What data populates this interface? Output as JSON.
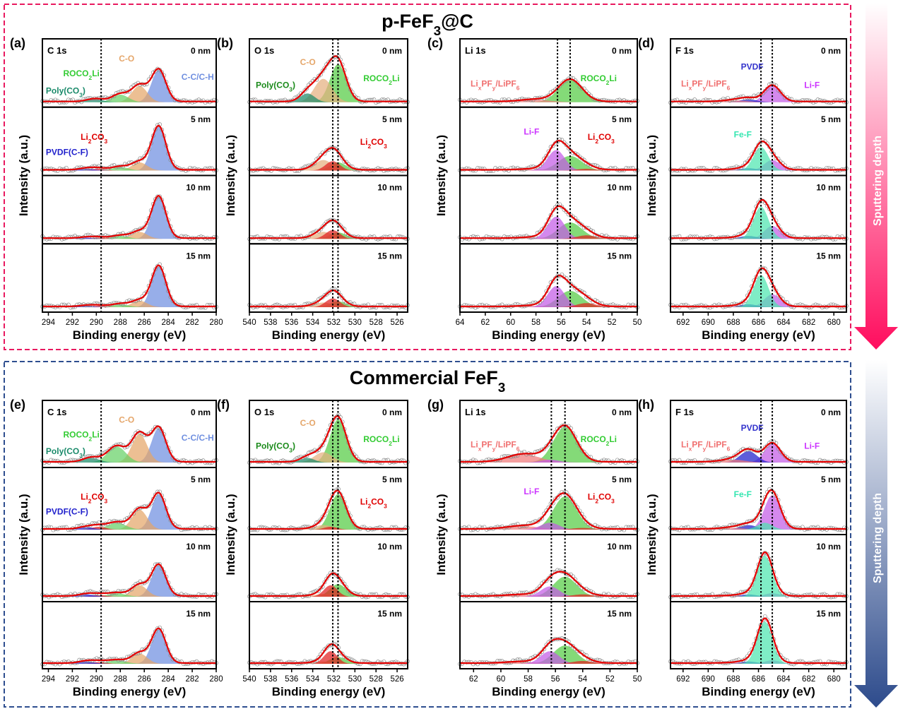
{
  "figure": {
    "group_titles": [
      "p-FeF3@C",
      "Commercial FeF3"
    ],
    "arrow_label": "Sputtering depth",
    "y_label": "Intensity (a.u.)",
    "x_label": "Binding energy (eV)",
    "colors": {
      "fit_line": "#e60000",
      "group_top_border": "#e8195f",
      "group_bottom_border": "#2e4e8f",
      "arrow_top": "#ff0d5e",
      "arrow_bottom": "#2d4b8c"
    }
  },
  "chart_data": [
    {
      "type": "line",
      "panel": "(a)",
      "title": "C 1s",
      "group": "p-FeF3@C",
      "xlim": [
        294.5,
        280
      ],
      "xticks": [
        294,
        292,
        290,
        288,
        286,
        284,
        282,
        280
      ],
      "dashed_lines_at": [
        289.6
      ],
      "depths": [
        "0 nm",
        "5 nm",
        "10 nm",
        "15 nm"
      ],
      "components": [
        {
          "name": "C-C/C-H",
          "center": 284.8,
          "fwhm": 1.4,
          "color": "#6f8fe0",
          "amplitude": [
            0.55,
            0.75,
            0.72,
            0.7
          ]
        },
        {
          "name": "C-O",
          "center": 286.4,
          "fwhm": 1.5,
          "color": "#e5a66a",
          "amplitude": [
            0.28,
            0.14,
            0.12,
            0.11
          ]
        },
        {
          "name": "ROCO2Li",
          "center": 288.0,
          "fwhm": 1.6,
          "color": "#66d166",
          "amplitude": [
            0.13,
            0.06,
            0.05,
            0.05
          ]
        },
        {
          "name": "Poly(CO3)",
          "center": 290.1,
          "fwhm": 1.6,
          "color": "#1a8a6a",
          "amplitude": [
            0.05,
            0.0,
            0.0,
            0.0
          ]
        },
        {
          "name": "Li2CO3",
          "center": 289.8,
          "fwhm": 1.4,
          "color": "#e02020",
          "amplitude": [
            0.0,
            0.03,
            0.02,
            0.02
          ]
        },
        {
          "name": "PVDF(C-F)",
          "center": 290.8,
          "fwhm": 1.5,
          "color": "#1f1fcc",
          "amplitude": [
            0.0,
            0.03,
            0.02,
            0.02
          ]
        }
      ],
      "annotations": [
        {
          "row": 0,
          "text": "C-O",
          "color": "#e5a66a"
        },
        {
          "row": 0,
          "text": "ROCO2Li",
          "color": "#33cc33"
        },
        {
          "row": 0,
          "text": "C-C/C-H",
          "color": "#6f8fe0"
        },
        {
          "row": 0,
          "text": "Poly(CO3)",
          "color": "#1a8a6a"
        },
        {
          "row": 1,
          "text": "Li2CO3",
          "color": "#e00000"
        },
        {
          "row": 1,
          "text": "PVDF(C-F)",
          "color": "#1f1fcc"
        }
      ]
    },
    {
      "type": "line",
      "panel": "(b)",
      "title": "O 1s",
      "group": "p-FeF3@C",
      "xlim": [
        540,
        525
      ],
      "xticks": [
        540,
        538,
        536,
        534,
        532,
        530,
        528,
        526
      ],
      "dashed_lines_at": [
        532.1,
        531.6
      ],
      "depths": [
        "0 nm",
        "5 nm",
        "10 nm",
        "15 nm"
      ],
      "components": [
        {
          "name": "ROCO2Li",
          "center": 531.6,
          "fwhm": 1.8,
          "color": "#55cc44",
          "amplitude": [
            0.65,
            0.14,
            0.11,
            0.1
          ]
        },
        {
          "name": "C-O",
          "center": 533.0,
          "fwhm": 2.0,
          "color": "#e5b080",
          "amplitude": [
            0.4,
            0.18,
            0.12,
            0.08
          ]
        },
        {
          "name": "Poly(CO3)",
          "center": 534.5,
          "fwhm": 1.6,
          "color": "#1a8a6a",
          "amplitude": [
            0.15,
            0.0,
            0.0,
            0.0
          ]
        },
        {
          "name": "Li2CO3",
          "center": 532.1,
          "fwhm": 1.6,
          "color": "#e02020",
          "amplitude": [
            0.0,
            0.16,
            0.15,
            0.15
          ]
        }
      ],
      "annotations": [
        {
          "row": 0,
          "text": "C-O",
          "color": "#e5a66a"
        },
        {
          "row": 0,
          "text": "ROCO2Li",
          "color": "#33cc33"
        },
        {
          "row": 0,
          "text": "Poly(CO3)",
          "color": "#1a8a1a"
        },
        {
          "row": 1,
          "text": "Li2CO3",
          "color": "#e00000"
        }
      ]
    },
    {
      "type": "line",
      "panel": "(c)",
      "title": "Li 1s",
      "group": "p-FeF3@C",
      "xlim": [
        64,
        50
      ],
      "xticks": [
        64,
        62,
        60,
        58,
        56,
        54,
        52,
        50
      ],
      "dashed_lines_at": [
        56.3,
        55.3
      ],
      "depths": [
        "0 nm",
        "5 nm",
        "10 nm",
        "15 nm"
      ],
      "components": [
        {
          "name": "ROCO2Li",
          "center": 55.3,
          "fwhm": 2.2,
          "color": "#55cc44",
          "amplitude": [
            0.38,
            0.25,
            0.28,
            0.28
          ]
        },
        {
          "name": "LixPFy/LiPF6",
          "center": 58.0,
          "fwhm": 2.8,
          "color": "#f07a7a",
          "amplitude": [
            0.04,
            0.02,
            0.02,
            0.02
          ]
        },
        {
          "name": "Li-F",
          "center": 56.4,
          "fwhm": 1.6,
          "color": "#c45be6",
          "amplitude": [
            0.0,
            0.35,
            0.38,
            0.36
          ]
        },
        {
          "name": "Li2CO3",
          "center": 54.0,
          "fwhm": 1.8,
          "color": "#e02020",
          "amplitude": [
            0.0,
            0.03,
            0.06,
            0.07
          ]
        }
      ],
      "annotations": [
        {
          "row": 0,
          "text": "LixPFy/LiPF6",
          "color": "#f07070"
        },
        {
          "row": 0,
          "text": "ROCO2Li",
          "color": "#33cc33"
        },
        {
          "row": 1,
          "text": "Li-F",
          "color": "#cc33ff"
        },
        {
          "row": 1,
          "text": "Li2CO3",
          "color": "#e00000"
        }
      ]
    },
    {
      "type": "line",
      "panel": "(d)",
      "title": "F 1s",
      "group": "p-FeF3@C",
      "xlim": [
        693,
        679
      ],
      "xticks": [
        692,
        690,
        688,
        686,
        684,
        682,
        680
      ],
      "dashed_lines_at": [
        685.8,
        684.9
      ],
      "depths": [
        "0 nm",
        "5 nm",
        "10 nm",
        "15 nm"
      ],
      "components": [
        {
          "name": "Li-F",
          "center": 684.9,
          "fwhm": 1.5,
          "color": "#c45be6",
          "amplitude": [
            0.28,
            0.18,
            0.22,
            0.22
          ]
        },
        {
          "name": "PVDF",
          "center": 686.8,
          "fwhm": 1.6,
          "color": "#1f1fcc",
          "amplitude": [
            0.05,
            0.04,
            0.05,
            0.05
          ]
        },
        {
          "name": "LixPFy/LiPF6",
          "center": 687.8,
          "fwhm": 2.2,
          "color": "#f07a7a",
          "amplitude": [
            0.03,
            0.01,
            0.01,
            0.01
          ]
        },
        {
          "name": "Fe-F",
          "center": 685.8,
          "fwhm": 1.4,
          "color": "#4ee6b0",
          "amplitude": [
            0.0,
            0.4,
            0.55,
            0.55
          ]
        }
      ],
      "annotations": [
        {
          "row": 0,
          "text": "PVDF",
          "color": "#3333cc"
        },
        {
          "row": 0,
          "text": "LixPFy/LiPF6",
          "color": "#f07070"
        },
        {
          "row": 0,
          "text": "Li-F",
          "color": "#cc33ff"
        },
        {
          "row": 1,
          "text": "Fe-F",
          "color": "#33e6b0"
        }
      ]
    },
    {
      "type": "line",
      "panel": "(e)",
      "title": "C 1s",
      "group": "Commercial FeF3",
      "xlim": [
        294.5,
        280
      ],
      "xticks": [
        294,
        292,
        290,
        288,
        286,
        284,
        282,
        280
      ],
      "dashed_lines_at": [
        289.6
      ],
      "depths": [
        "0 nm",
        "5 nm",
        "10 nm",
        "15 nm"
      ],
      "components": [
        {
          "name": "C-C/C-H",
          "center": 284.8,
          "fwhm": 1.4,
          "color": "#6f8fe0",
          "amplitude": [
            0.6,
            0.62,
            0.55,
            0.6
          ]
        },
        {
          "name": "C-O",
          "center": 286.4,
          "fwhm": 1.5,
          "color": "#e5a66a",
          "amplitude": [
            0.5,
            0.35,
            0.2,
            0.18
          ]
        },
        {
          "name": "ROCO2Li",
          "center": 288.3,
          "fwhm": 1.8,
          "color": "#66d166",
          "amplitude": [
            0.28,
            0.12,
            0.06,
            0.06
          ]
        },
        {
          "name": "Poly(CO3)",
          "center": 290.4,
          "fwhm": 1.6,
          "color": "#1a8a6a",
          "amplitude": [
            0.08,
            0.0,
            0.0,
            0.0
          ]
        },
        {
          "name": "Li2CO3",
          "center": 289.8,
          "fwhm": 1.4,
          "color": "#e02020",
          "amplitude": [
            0.0,
            0.05,
            0.03,
            0.03
          ]
        },
        {
          "name": "PVDF(C-F)",
          "center": 290.8,
          "fwhm": 1.5,
          "color": "#1f1fcc",
          "amplitude": [
            0.0,
            0.04,
            0.04,
            0.04
          ]
        }
      ],
      "annotations": [
        {
          "row": 0,
          "text": "C-O",
          "color": "#e5a66a"
        },
        {
          "row": 0,
          "text": "ROCO2Li",
          "color": "#33cc33"
        },
        {
          "row": 0,
          "text": "C-C/C-H",
          "color": "#6f8fe0"
        },
        {
          "row": 0,
          "text": "Poly(CO3)",
          "color": "#1a8a6a"
        },
        {
          "row": 1,
          "text": "Li2CO3",
          "color": "#e00000"
        },
        {
          "row": 1,
          "text": "PVDF(C-F)",
          "color": "#1f1fcc"
        }
      ]
    },
    {
      "type": "line",
      "panel": "(f)",
      "title": "O 1s",
      "group": "Commercial FeF3",
      "xlim": [
        540,
        525
      ],
      "xticks": [
        540,
        538,
        536,
        534,
        532,
        530,
        528,
        526
      ],
      "dashed_lines_at": [
        532.1,
        531.6
      ],
      "depths": [
        "0 nm",
        "5 nm",
        "10 nm",
        "15 nm"
      ],
      "components": [
        {
          "name": "ROCO2Li",
          "center": 531.6,
          "fwhm": 1.8,
          "color": "#55cc44",
          "amplitude": [
            0.75,
            0.62,
            0.22,
            0.12
          ]
        },
        {
          "name": "C-O",
          "center": 533.0,
          "fwhm": 2.0,
          "color": "#e5b080",
          "amplitude": [
            0.18,
            0.08,
            0.05,
            0.04
          ]
        },
        {
          "name": "Poly(CO3)",
          "center": 534.5,
          "fwhm": 1.6,
          "color": "#1a8a6a",
          "amplitude": [
            0.08,
            0.0,
            0.0,
            0.0
          ]
        },
        {
          "name": "Li2CO3",
          "center": 532.3,
          "fwhm": 1.5,
          "color": "#e02020",
          "amplitude": [
            0.0,
            0.05,
            0.2,
            0.22
          ]
        }
      ],
      "annotations": [
        {
          "row": 0,
          "text": "C-O",
          "color": "#e5a66a"
        },
        {
          "row": 0,
          "text": "ROCO2Li",
          "color": "#33cc33"
        },
        {
          "row": 0,
          "text": "Poly(CO3)",
          "color": "#1a8a1a"
        },
        {
          "row": 1,
          "text": "Li2CO3",
          "color": "#e00000"
        }
      ]
    },
    {
      "type": "line",
      "panel": "(g)",
      "title": "Li 1s",
      "group": "Commercial FeF3",
      "xlim": [
        63,
        50
      ],
      "xticks": [
        62,
        60,
        58,
        56,
        54,
        52,
        50
      ],
      "dashed_lines_at": [
        56.3,
        55.3
      ],
      "depths": [
        "0 nm",
        "5 nm",
        "10 nm",
        "15 nm"
      ],
      "components": [
        {
          "name": "ROCO2Li",
          "center": 55.3,
          "fwhm": 2.0,
          "color": "#55cc44",
          "amplitude": [
            0.62,
            0.58,
            0.35,
            0.32
          ]
        },
        {
          "name": "LixPFy/LiPF6",
          "center": 58.3,
          "fwhm": 2.8,
          "color": "#f07a7a",
          "amplitude": [
            0.14,
            0.06,
            0.03,
            0.03
          ]
        },
        {
          "name": "Li-F",
          "center": 56.4,
          "fwhm": 1.6,
          "color": "#c45be6",
          "amplitude": [
            0.05,
            0.12,
            0.18,
            0.22
          ]
        },
        {
          "name": "Li2CO3",
          "center": 54.0,
          "fwhm": 1.8,
          "color": "#e02020",
          "amplitude": [
            0.0,
            0.03,
            0.04,
            0.05
          ]
        }
      ],
      "annotations": [
        {
          "row": 0,
          "text": "LixPFy/LiPF6",
          "color": "#f07070"
        },
        {
          "row": 0,
          "text": "ROCO2Li",
          "color": "#33cc33"
        },
        {
          "row": 1,
          "text": "Li-F",
          "color": "#cc33ff"
        },
        {
          "row": 1,
          "text": "Li2CO3",
          "color": "#e00000"
        }
      ]
    },
    {
      "type": "line",
      "panel": "(h)",
      "title": "F 1s",
      "group": "Commercial FeF3",
      "xlim": [
        693,
        679
      ],
      "xticks": [
        692,
        690,
        688,
        686,
        684,
        682,
        680
      ],
      "dashed_lines_at": [
        685.8,
        684.9
      ],
      "depths": [
        "0 nm",
        "5 nm",
        "10 nm",
        "15 nm"
      ],
      "components": [
        {
          "name": "Li-F",
          "center": 684.9,
          "fwhm": 1.5,
          "color": "#c45be6",
          "amplitude": [
            0.33,
            0.6,
            0.06,
            0.06
          ]
        },
        {
          "name": "PVDF",
          "center": 686.8,
          "fwhm": 1.6,
          "color": "#1f1fcc",
          "amplitude": [
            0.2,
            0.08,
            0.04,
            0.04
          ]
        },
        {
          "name": "LixPFy/LiPF6",
          "center": 688.0,
          "fwhm": 2.2,
          "color": "#f07a7a",
          "amplitude": [
            0.05,
            0.03,
            0.01,
            0.01
          ]
        },
        {
          "name": "Fe-F",
          "center": 685.5,
          "fwhm": 1.4,
          "color": "#4ee6b0",
          "amplitude": [
            0.0,
            0.12,
            0.72,
            0.74
          ]
        }
      ],
      "annotations": [
        {
          "row": 0,
          "text": "PVDF",
          "color": "#3333cc"
        },
        {
          "row": 0,
          "text": "LixPFy/LiPF6",
          "color": "#f07070"
        },
        {
          "row": 0,
          "text": "Li-F",
          "color": "#cc33ff"
        },
        {
          "row": 1,
          "text": "Fe-F",
          "color": "#33e6b0"
        }
      ]
    }
  ]
}
